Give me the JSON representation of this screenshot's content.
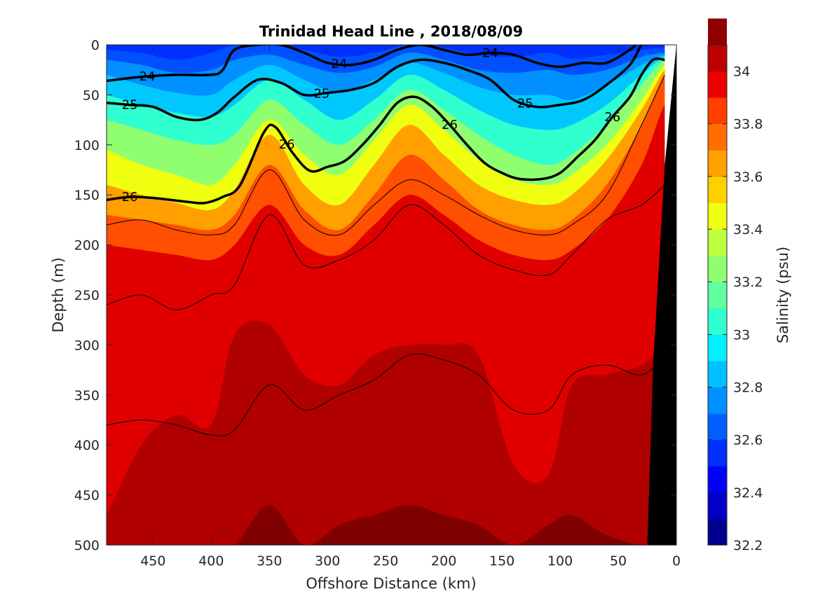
{
  "chart_data": {
    "type": "contour",
    "title": "Trinidad Head Line , 2018/08/09",
    "xlabel": "Offshore Distance (km)",
    "ylabel": "Depth (m)",
    "xlim": [
      490,
      0
    ],
    "ylim": [
      0,
      500
    ],
    "x_reversed": true,
    "y_reversed": true,
    "x_ticks": [
      450,
      400,
      350,
      300,
      250,
      200,
      150,
      100,
      50,
      0
    ],
    "y_ticks": [
      0,
      50,
      100,
      150,
      200,
      250,
      300,
      350,
      400,
      450,
      500
    ],
    "colorbar": {
      "label": "Salinity (psu)",
      "range": [
        32.2,
        34.1
      ],
      "ticks": [
        32.2,
        32.4,
        32.6,
        32.8,
        33,
        33.2,
        33.4,
        33.6,
        33.8,
        34
      ],
      "level_step": 0.1,
      "colors": [
        "#00008f",
        "#0000c8",
        "#0000ff",
        "#0030ff",
        "#0060ff",
        "#0090ff",
        "#00c0ff",
        "#00f0ff",
        "#30ffcf",
        "#60ff9f",
        "#90ff6f",
        "#c0ff3f",
        "#f0ff0f",
        "#ffcf00",
        "#ff9f00",
        "#ff6f00",
        "#ff3f00",
        "#ef0000",
        "#bf0000",
        "#8f0000"
      ]
    },
    "salinity_fields": [
      {
        "name": "surface",
        "x": [
          490,
          460,
          430,
          400,
          380,
          350,
          320,
          290,
          260,
          230,
          200,
          170,
          140,
          110,
          90,
          60,
          30,
          10
        ],
        "y": [
          0,
          0,
          0,
          0,
          0,
          0,
          0,
          0,
          0,
          0,
          0,
          0,
          0,
          0,
          0,
          0,
          0,
          0
        ]
      },
      {
        "name": "s32.4",
        "x": [
          490,
          460,
          430,
          400,
          380,
          350,
          320,
          290,
          260,
          230,
          200,
          170,
          140,
          110,
          90,
          60,
          30,
          10
        ],
        "y": [
          5,
          8,
          15,
          8,
          0,
          0,
          5,
          12,
          8,
          0,
          3,
          10,
          12,
          8,
          14,
          10,
          5,
          3
        ]
      },
      {
        "name": "s32.6",
        "x": [
          490,
          460,
          430,
          400,
          380,
          350,
          320,
          290,
          260,
          230,
          200,
          170,
          140,
          110,
          90,
          60,
          30,
          10
        ],
        "y": [
          15,
          20,
          28,
          25,
          15,
          10,
          20,
          28,
          22,
          8,
          15,
          25,
          28,
          25,
          30,
          25,
          12,
          8
        ]
      },
      {
        "name": "s32.8",
        "x": [
          490,
          460,
          430,
          400,
          380,
          350,
          320,
          290,
          260,
          230,
          200,
          170,
          140,
          110,
          90,
          60,
          30,
          10
        ],
        "y": [
          30,
          40,
          48,
          50,
          35,
          20,
          35,
          48,
          35,
          18,
          28,
          42,
          50,
          50,
          55,
          40,
          20,
          10
        ]
      },
      {
        "name": "s33.0",
        "x": [
          490,
          460,
          430,
          400,
          380,
          350,
          320,
          290,
          260,
          230,
          200,
          170,
          140,
          110,
          90,
          60,
          30,
          10
        ],
        "y": [
          50,
          60,
          68,
          72,
          60,
          35,
          55,
          75,
          55,
          30,
          45,
          65,
          80,
          85,
          80,
          60,
          30,
          12
        ]
      },
      {
        "name": "s33.2",
        "x": [
          490,
          460,
          430,
          400,
          380,
          350,
          320,
          290,
          260,
          230,
          200,
          170,
          140,
          110,
          90,
          60,
          30,
          10
        ],
        "y": [
          75,
          85,
          95,
          100,
          90,
          55,
          80,
          100,
          75,
          45,
          65,
          90,
          110,
          120,
          110,
          80,
          40,
          15
        ]
      },
      {
        "name": "s33.4",
        "x": [
          490,
          460,
          430,
          400,
          380,
          350,
          320,
          290,
          260,
          230,
          200,
          170,
          140,
          110,
          90,
          60,
          30,
          10
        ],
        "y": [
          105,
          120,
          130,
          140,
          120,
          75,
          110,
          130,
          95,
          60,
          85,
          115,
          135,
          140,
          130,
          100,
          55,
          20
        ]
      },
      {
        "name": "s33.6",
        "x": [
          490,
          460,
          430,
          400,
          380,
          350,
          320,
          290,
          260,
          230,
          200,
          170,
          140,
          110,
          90,
          60,
          30,
          10
        ],
        "y": [
          140,
          150,
          158,
          165,
          145,
          90,
          140,
          160,
          120,
          80,
          110,
          140,
          155,
          160,
          150,
          115,
          65,
          25
        ]
      },
      {
        "name": "s33.8",
        "x": [
          490,
          460,
          430,
          400,
          380,
          350,
          320,
          290,
          260,
          230,
          200,
          170,
          140,
          110,
          90,
          60,
          30,
          10
        ],
        "y": [
          170,
          175,
          180,
          185,
          170,
          120,
          165,
          185,
          150,
          110,
          135,
          165,
          180,
          185,
          175,
          140,
          80,
          30
        ]
      },
      {
        "name": "s33.9",
        "x": [
          490,
          460,
          430,
          400,
          380,
          350,
          320,
          290,
          260,
          230,
          200,
          170,
          140,
          110,
          90,
          60,
          30,
          10
        ],
        "y": [
          200,
          205,
          210,
          215,
          200,
          160,
          200,
          210,
          180,
          150,
          170,
          195,
          210,
          215,
          205,
          175,
          120,
          60
        ]
      },
      {
        "name": "s34.0",
        "x": [
          490,
          460,
          430,
          400,
          380,
          350,
          320,
          290,
          260,
          230,
          200,
          170,
          140,
          110,
          90,
          60,
          30,
          10
        ],
        "y": [
          470,
          400,
          370,
          380,
          290,
          280,
          330,
          340,
          310,
          300,
          300,
          310,
          420,
          430,
          340,
          330,
          320,
          300
        ]
      },
      {
        "name": "s34.1",
        "x": [
          490,
          460,
          430,
          400,
          380,
          350,
          320,
          290,
          260,
          230,
          200,
          170,
          140,
          110,
          90,
          60,
          30,
          10
        ],
        "y": [
          500,
          500,
          500,
          500,
          500,
          460,
          500,
          480,
          470,
          460,
          470,
          480,
          500,
          480,
          470,
          490,
          500,
          500
        ]
      }
    ],
    "density_contours": [
      {
        "label": "24",
        "x": [
          490,
          460,
          430,
          400,
          390,
          380,
          360,
          340,
          320,
          300,
          280,
          260,
          240,
          220,
          200,
          180,
          160,
          140,
          120,
          100,
          80,
          60,
          40,
          35
        ],
        "y": [
          36,
          32,
          30,
          30,
          25,
          5,
          0,
          0,
          8,
          18,
          20,
          15,
          5,
          0,
          5,
          10,
          8,
          10,
          18,
          22,
          18,
          18,
          5,
          0
        ]
      },
      {
        "label": "25",
        "x": [
          490,
          470,
          450,
          430,
          410,
          395,
          380,
          360,
          340,
          320,
          300,
          280,
          260,
          240,
          220,
          200,
          180,
          160,
          140,
          120,
          100,
          80,
          60,
          40,
          30,
          25
        ],
        "y": [
          58,
          60,
          62,
          72,
          75,
          68,
          52,
          35,
          38,
          50,
          48,
          45,
          38,
          22,
          15,
          18,
          25,
          35,
          55,
          62,
          60,
          55,
          40,
          20,
          0,
          0
        ]
      },
      {
        "label": "26",
        "x": [
          490,
          470,
          450,
          420,
          405,
          390,
          375,
          355,
          345,
          330,
          315,
          300,
          285,
          270,
          255,
          240,
          225,
          210,
          195,
          180,
          165,
          150,
          135,
          115,
          100,
          85,
          70,
          55,
          40,
          30,
          20,
          10
        ],
        "y": [
          155,
          152,
          153,
          157,
          158,
          152,
          140,
          88,
          82,
          108,
          126,
          122,
          116,
          100,
          80,
          58,
          52,
          62,
          80,
          100,
          118,
          128,
          134,
          134,
          128,
          112,
          95,
          72,
          52,
          30,
          15,
          15
        ]
      }
    ],
    "thin_contours": [
      {
        "x": [
          490,
          460,
          430,
          400,
          380,
          350,
          320,
          290,
          260,
          230,
          200,
          170,
          140,
          110,
          90,
          60,
          30,
          10
        ],
        "y": [
          180,
          175,
          185,
          190,
          180,
          125,
          175,
          190,
          160,
          135,
          150,
          170,
          185,
          190,
          180,
          150,
          80,
          30
        ]
      },
      {
        "x": [
          490,
          460,
          430,
          400,
          380,
          350,
          320,
          290,
          260,
          230,
          200,
          170,
          140,
          110,
          90,
          60,
          30,
          10
        ],
        "y": [
          260,
          250,
          265,
          250,
          240,
          170,
          220,
          215,
          195,
          160,
          180,
          210,
          225,
          230,
          210,
          175,
          160,
          140
        ]
      },
      {
        "x": [
          490,
          460,
          430,
          400,
          380,
          350,
          320,
          290,
          260,
          230,
          200,
          170,
          140,
          110,
          90,
          60,
          30,
          10
        ],
        "y": [
          380,
          375,
          380,
          390,
          385,
          340,
          365,
          350,
          335,
          310,
          315,
          330,
          365,
          365,
          330,
          320,
          330,
          310
        ]
      }
    ],
    "bathymetry": {
      "x": [
        25,
        20,
        10,
        0,
        0,
        25
      ],
      "y": [
        500,
        320,
        120,
        0,
        500,
        500
      ]
    }
  }
}
